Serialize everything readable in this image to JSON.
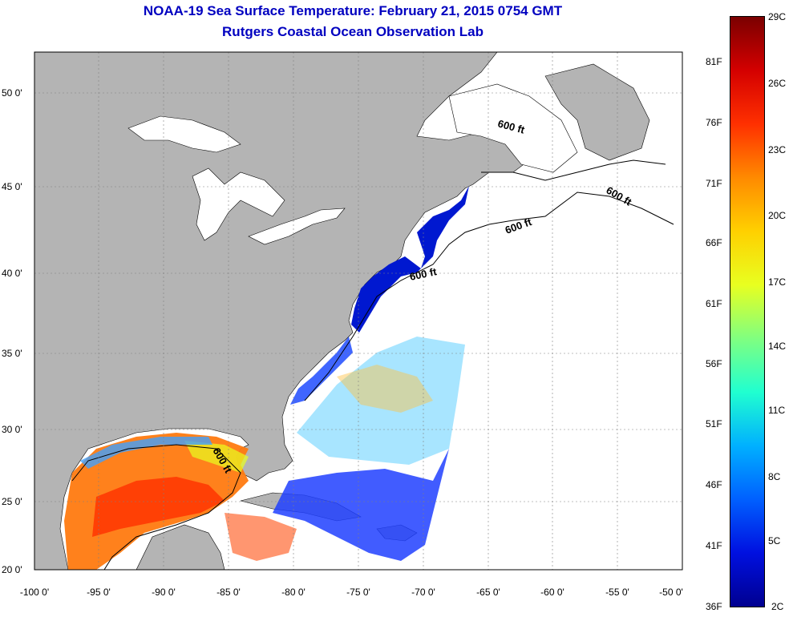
{
  "title": "NOAA-19 Sea Surface Temperature:  February 21, 2015 0754 GMT",
  "subtitle": "Rutgers Coastal Ocean Observation Lab",
  "axes": {
    "lat_labels": [
      "50 0'",
      "45 0'",
      "40 0'",
      "35 0'",
      "30 0'",
      "25 0'",
      "20 0'"
    ],
    "lon_labels": [
      "-100 0'",
      "-95 0'",
      "-90 0'",
      "-85 0'",
      "-80 0'",
      "-75 0'",
      "-70 0'",
      "-65 0'",
      "-60 0'",
      "-55 0'",
      "-50 0'"
    ],
    "lat_range": [
      20,
      52.5
    ],
    "lon_range": [
      -100,
      -50
    ]
  },
  "contour_labels": [
    "600 ft",
    "600 ft",
    "600 ft",
    "600 ft",
    "600 ft"
  ],
  "colorbar": {
    "celsius": [
      "29C",
      "26C",
      "23C",
      "20C",
      "17C",
      "14C",
      "11C",
      "8C",
      "5C",
      "2C"
    ],
    "fahrenheit": [
      "81F",
      "76F",
      "71F",
      "66F",
      "61F",
      "56F",
      "51F",
      "46F",
      "41F",
      "36F"
    ],
    "colors": [
      "#7a0000",
      "#d40000",
      "#ff3000",
      "#ff8a00",
      "#ffd000",
      "#e8ff20",
      "#80ff80",
      "#20ffd0",
      "#00b0ff",
      "#0060ff",
      "#0010e0",
      "#000090"
    ]
  },
  "land_color": "#b4b4b4",
  "missing_color": "#ffffff"
}
